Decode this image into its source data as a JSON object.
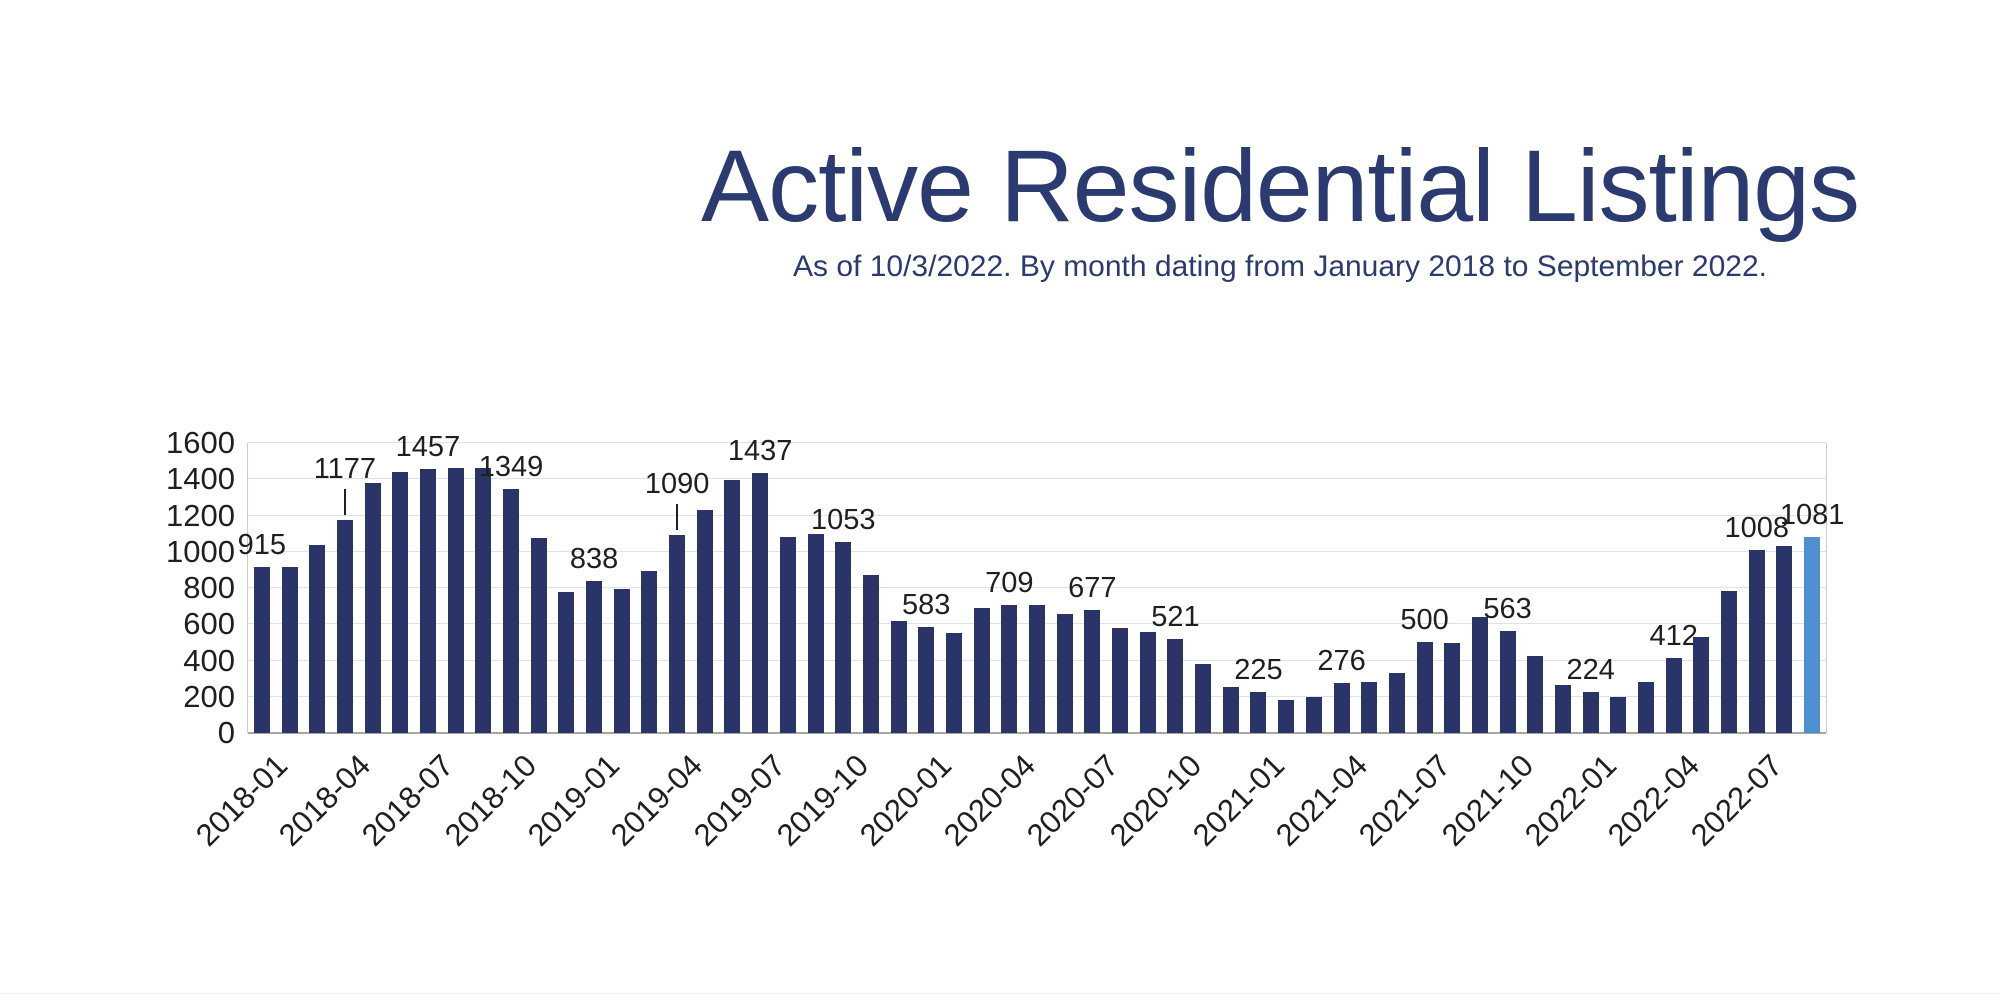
{
  "header": {
    "title": "Active Residential Listings",
    "subtitle": "As of 10/3/2022. By month dating from January 2018 to September 2022.",
    "text_color": "#2b3a70"
  },
  "chart_data": {
    "type": "bar",
    "title": "Active Residential Listings",
    "subtitle": "As of 10/3/2022. By month dating from January 2018 to September 2022.",
    "xlabel": "",
    "ylabel": "",
    "ylim": [
      0,
      1600
    ],
    "y_ticks": [
      0,
      200,
      400,
      600,
      800,
      1000,
      1200,
      1400,
      1600
    ],
    "grid": true,
    "legend": "none",
    "bar_color": "#2a3469",
    "highlight_color": "#4e8fd0",
    "gridline_color": "#dde3ee",
    "x_tick_labels": [
      "2018-01",
      "2018-04",
      "2018-07",
      "2018-10",
      "2019-01",
      "2019-04",
      "2019-07",
      "2019-10",
      "2020-01",
      "2020-04",
      "2020-07",
      "2020-10",
      "2021-01",
      "2021-04",
      "2021-07",
      "2021-10",
      "2022-01",
      "2022-04",
      "2022-07"
    ],
    "points": [
      {
        "m": "2018-01",
        "v": 915,
        "label": "915"
      },
      {
        "m": "2018-02",
        "v": 915
      },
      {
        "m": "2018-03",
        "v": 1035
      },
      {
        "m": "2018-04",
        "v": 1177,
        "label": "1177",
        "leader": true
      },
      {
        "m": "2018-05",
        "v": 1380
      },
      {
        "m": "2018-06",
        "v": 1440
      },
      {
        "m": "2018-07",
        "v": 1457,
        "label": "1457"
      },
      {
        "m": "2018-08",
        "v": 1460
      },
      {
        "m": "2018-09",
        "v": 1460
      },
      {
        "m": "2018-10",
        "v": 1349,
        "label": "1349"
      },
      {
        "m": "2018-11",
        "v": 1075
      },
      {
        "m": "2018-12",
        "v": 780
      },
      {
        "m": "2019-01",
        "v": 838,
        "label": "838"
      },
      {
        "m": "2019-02",
        "v": 795
      },
      {
        "m": "2019-03",
        "v": 895
      },
      {
        "m": "2019-04",
        "v": 1090,
        "label": "1090",
        "leader": true
      },
      {
        "m": "2019-05",
        "v": 1230
      },
      {
        "m": "2019-06",
        "v": 1395
      },
      {
        "m": "2019-07",
        "v": 1437,
        "label": "1437"
      },
      {
        "m": "2019-08",
        "v": 1080
      },
      {
        "m": "2019-09",
        "v": 1100
      },
      {
        "m": "2019-10",
        "v": 1053,
        "label": "1053"
      },
      {
        "m": "2019-11",
        "v": 870
      },
      {
        "m": "2019-12",
        "v": 620
      },
      {
        "m": "2020-01",
        "v": 583,
        "label": "583"
      },
      {
        "m": "2020-02",
        "v": 550
      },
      {
        "m": "2020-03",
        "v": 690
      },
      {
        "m": "2020-04",
        "v": 709,
        "label": "709"
      },
      {
        "m": "2020-05",
        "v": 705
      },
      {
        "m": "2020-06",
        "v": 655
      },
      {
        "m": "2020-07",
        "v": 677,
        "label": "677"
      },
      {
        "m": "2020-08",
        "v": 580
      },
      {
        "m": "2020-09",
        "v": 560
      },
      {
        "m": "2020-10",
        "v": 521,
        "label": "521"
      },
      {
        "m": "2020-11",
        "v": 380
      },
      {
        "m": "2020-12",
        "v": 255
      },
      {
        "m": "2021-01",
        "v": 225,
        "label": "225"
      },
      {
        "m": "2021-02",
        "v": 180
      },
      {
        "m": "2021-03",
        "v": 200
      },
      {
        "m": "2021-04",
        "v": 276,
        "label": "276"
      },
      {
        "m": "2021-05",
        "v": 280
      },
      {
        "m": "2021-06",
        "v": 330
      },
      {
        "m": "2021-07",
        "v": 500,
        "label": "500"
      },
      {
        "m": "2021-08",
        "v": 495
      },
      {
        "m": "2021-09",
        "v": 640
      },
      {
        "m": "2021-10",
        "v": 563,
        "label": "563"
      },
      {
        "m": "2021-11",
        "v": 425
      },
      {
        "m": "2021-12",
        "v": 265
      },
      {
        "m": "2022-01",
        "v": 224,
        "label": "224"
      },
      {
        "m": "2022-02",
        "v": 200
      },
      {
        "m": "2022-03",
        "v": 280
      },
      {
        "m": "2022-04",
        "v": 412,
        "label": "412"
      },
      {
        "m": "2022-05",
        "v": 530
      },
      {
        "m": "2022-06",
        "v": 785
      },
      {
        "m": "2022-07",
        "v": 1008,
        "label": "1008"
      },
      {
        "m": "2022-08",
        "v": 1030
      },
      {
        "m": "2022-09",
        "v": 1081,
        "label": "1081",
        "highlight": true
      }
    ]
  }
}
